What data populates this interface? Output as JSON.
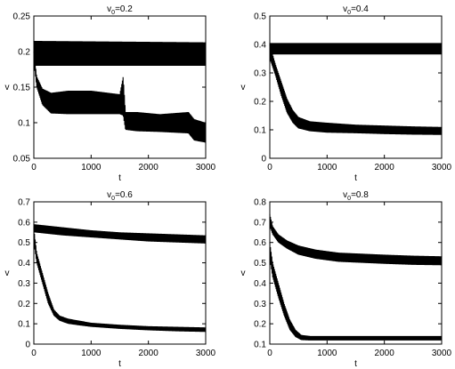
{
  "chart_data": [
    {
      "type": "line",
      "title_main": "v",
      "title_sub": "0",
      "title_rest": "=0.2",
      "xlabel": "t",
      "ylabel": "v",
      "xlim": [
        0,
        3000
      ],
      "ylim": [
        0.05,
        0.25
      ],
      "xticks": [
        0,
        1000,
        2000,
        3000
      ],
      "xtick_labels": [
        "0",
        "1000",
        "2000",
        "3000"
      ],
      "yticks": [
        0.05,
        0.1,
        0.15,
        0.2,
        0.25
      ],
      "ytick_labels": [
        "0.05",
        "0.1",
        "0.15",
        "0.2",
        "0.25"
      ],
      "grid": false,
      "series": [
        {
          "band_upper": {
            "x": [
              0,
              20,
              3000
            ],
            "y": [
              0.215,
              0.215,
              0.213
            ]
          },
          "band_lower": {
            "x": [
              0,
              20,
              3000
            ],
            "y": [
              0.195,
              0.18,
              0.18
            ]
          }
        },
        {
          "band_upper": {
            "x": [
              0,
              50,
              150,
              300,
              600,
              1000,
              1500,
              1560,
              1600,
              1800,
              2200,
              2700,
              2800,
              3000
            ],
            "y": [
              0.2,
              0.165,
              0.148,
              0.142,
              0.145,
              0.145,
              0.14,
              0.165,
              0.115,
              0.115,
              0.112,
              0.115,
              0.105,
              0.1
            ]
          },
          "band_lower": {
            "x": [
              0,
              50,
              150,
              300,
              600,
              1000,
              1500,
              1560,
              1600,
              1800,
              2200,
              2700,
              2800,
              3000
            ],
            "y": [
              0.185,
              0.15,
              0.125,
              0.113,
              0.112,
              0.112,
              0.112,
              0.11,
              0.09,
              0.088,
              0.087,
              0.085,
              0.075,
              0.072
            ]
          }
        }
      ]
    },
    {
      "type": "line",
      "title_main": "v",
      "title_sub": "0",
      "title_rest": "=0.4",
      "xlabel": "t",
      "ylabel": "v",
      "xlim": [
        0,
        3000
      ],
      "ylim": [
        0,
        0.5
      ],
      "xticks": [
        0,
        1000,
        2000,
        3000
      ],
      "xtick_labels": [
        "0",
        "1000",
        "2000",
        "3000"
      ],
      "yticks": [
        0,
        0.1,
        0.2,
        0.3,
        0.4,
        0.5
      ],
      "ytick_labels": [
        "0",
        "0.1",
        "0.2",
        "0.3",
        "0.4",
        "0.5"
      ],
      "grid": false,
      "series": [
        {
          "band_upper": {
            "x": [
              0,
              3000
            ],
            "y": [
              0.405,
              0.405
            ]
          },
          "band_lower": {
            "x": [
              0,
              3000
            ],
            "y": [
              0.365,
              0.365
            ]
          }
        },
        {
          "band_upper": {
            "x": [
              0,
              100,
              200,
              300,
              400,
              500,
              700,
              1000,
              1500,
              2000,
              2500,
              3000
            ],
            "y": [
              0.4,
              0.33,
              0.27,
              0.21,
              0.17,
              0.145,
              0.13,
              0.125,
              0.118,
              0.115,
              0.112,
              0.11
            ]
          },
          "band_lower": {
            "x": [
              0,
              100,
              200,
              300,
              400,
              500,
              700,
              1000,
              1500,
              2000,
              2500,
              3000
            ],
            "y": [
              0.35,
              0.29,
              0.22,
              0.16,
              0.125,
              0.105,
              0.095,
              0.09,
              0.088,
              0.085,
              0.083,
              0.082
            ]
          }
        }
      ]
    },
    {
      "type": "line",
      "title_main": "v",
      "title_sub": "0",
      "title_rest": "=0.6",
      "xlabel": "t",
      "ylabel": "v",
      "xlim": [
        0,
        3000
      ],
      "ylim": [
        0,
        0.7
      ],
      "xticks": [
        0,
        1000,
        2000,
        3000
      ],
      "xtick_labels": [
        "0",
        "1000",
        "2000",
        "3000"
      ],
      "yticks": [
        0,
        0.1,
        0.2,
        0.3,
        0.4,
        0.5,
        0.6,
        0.7
      ],
      "ytick_labels": [
        "0",
        "0.1",
        "0.2",
        "0.3",
        "0.4",
        "0.5",
        "0.6",
        "0.7"
      ],
      "grid": false,
      "series": [
        {
          "band_upper": {
            "x": [
              0,
              500,
              1000,
              1500,
              2000,
              2500,
              3000
            ],
            "y": [
              0.59,
              0.575,
              0.56,
              0.55,
              0.545,
              0.54,
              0.535
            ]
          },
          "band_lower": {
            "x": [
              0,
              500,
              1000,
              1500,
              2000,
              2500,
              3000
            ],
            "y": [
              0.55,
              0.535,
              0.525,
              0.515,
              0.505,
              0.5,
              0.495
            ]
          }
        },
        {
          "band_upper": {
            "x": [
              0,
              50,
              150,
              250,
              350,
              450,
              600,
              800,
              1000,
              1500,
              2000,
              2500,
              3000
            ],
            "y": [
              0.57,
              0.45,
              0.35,
              0.25,
              0.17,
              0.14,
              0.125,
              0.115,
              0.105,
              0.095,
              0.088,
              0.085,
              0.082
            ]
          },
          "band_lower": {
            "x": [
              0,
              50,
              150,
              250,
              350,
              450,
              600,
              800,
              1000,
              1500,
              2000,
              2500,
              3000
            ],
            "y": [
              0.5,
              0.4,
              0.3,
              0.2,
              0.14,
              0.115,
              0.1,
              0.092,
              0.085,
              0.075,
              0.068,
              0.063,
              0.06
            ]
          }
        }
      ]
    },
    {
      "type": "line",
      "title_main": "v",
      "title_sub": "0",
      "title_rest": "=0.8",
      "xlabel": "t",
      "ylabel": "v",
      "xlim": [
        0,
        3000
      ],
      "ylim": [
        0.1,
        0.8
      ],
      "xticks": [
        0,
        1000,
        2000,
        3000
      ],
      "xtick_labels": [
        "0",
        "1000",
        "2000",
        "3000"
      ],
      "yticks": [
        0.1,
        0.2,
        0.3,
        0.4,
        0.5,
        0.6,
        0.7,
        0.8
      ],
      "ytick_labels": [
        "0.1",
        "0.2",
        "0.3",
        "0.4",
        "0.5",
        "0.6",
        "0.7",
        "0.8"
      ],
      "grid": false,
      "series": [
        {
          "band_upper": {
            "x": [
              0,
              50,
              150,
              300,
              500,
              800,
              1200,
              1600,
              2000,
              2500,
              3000
            ],
            "y": [
              0.74,
              0.68,
              0.64,
              0.61,
              0.585,
              0.565,
              0.55,
              0.545,
              0.54,
              0.535,
              0.532
            ]
          },
          "band_lower": {
            "x": [
              0,
              50,
              150,
              300,
              500,
              800,
              1200,
              1600,
              2000,
              2500,
              3000
            ],
            "y": [
              0.68,
              0.64,
              0.6,
              0.57,
              0.54,
              0.52,
              0.505,
              0.5,
              0.495,
              0.49,
              0.488
            ]
          }
        },
        {
          "band_upper": {
            "x": [
              0,
              50,
              150,
              250,
              350,
              450,
              550,
              700,
              1000,
              2000,
              3000
            ],
            "y": [
              0.6,
              0.5,
              0.4,
              0.3,
              0.22,
              0.17,
              0.145,
              0.14,
              0.14,
              0.14,
              0.14
            ]
          },
          "band_lower": {
            "x": [
              0,
              50,
              150,
              250,
              350,
              450,
              550,
              700,
              1000,
              2000,
              3000
            ],
            "y": [
              0.52,
              0.43,
              0.33,
              0.24,
              0.17,
              0.135,
              0.12,
              0.118,
              0.118,
              0.118,
              0.118
            ]
          }
        }
      ]
    }
  ]
}
